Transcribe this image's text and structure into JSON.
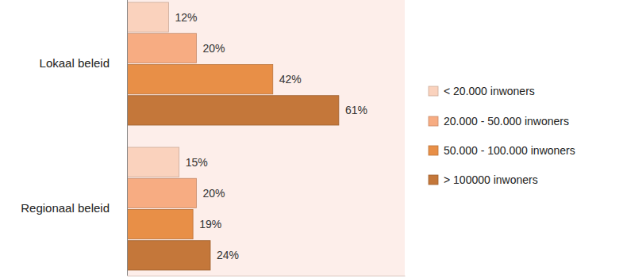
{
  "chart_data": {
    "type": "bar",
    "orientation": "horizontal",
    "categories": [
      "Lokaal beleid",
      "Regionaal beleid"
    ],
    "series": [
      {
        "name": "< 20.000 inwoners",
        "color": "#fad2bd",
        "values": [
          12,
          15
        ],
        "value_labels": [
          "12%",
          "15%"
        ]
      },
      {
        "name": "20.000 - 50.000 inwoners",
        "color": "#f7ac82",
        "values": [
          20,
          20
        ],
        "value_labels": [
          "20%",
          "20%"
        ]
      },
      {
        "name": "50.000 - 100.000 inwoners",
        "color": "#e88f47",
        "values": [
          42,
          19
        ],
        "value_labels": [
          "42%",
          "19%"
        ]
      },
      {
        "name": "> 100000 inwoners",
        "color": "#c4773a",
        "values": [
          61,
          24
        ],
        "value_labels": [
          "61%",
          "24%"
        ]
      }
    ],
    "xlim": [
      0,
      80
    ],
    "data_labels": true,
    "tick_labels": "y",
    "legend": "right"
  }
}
